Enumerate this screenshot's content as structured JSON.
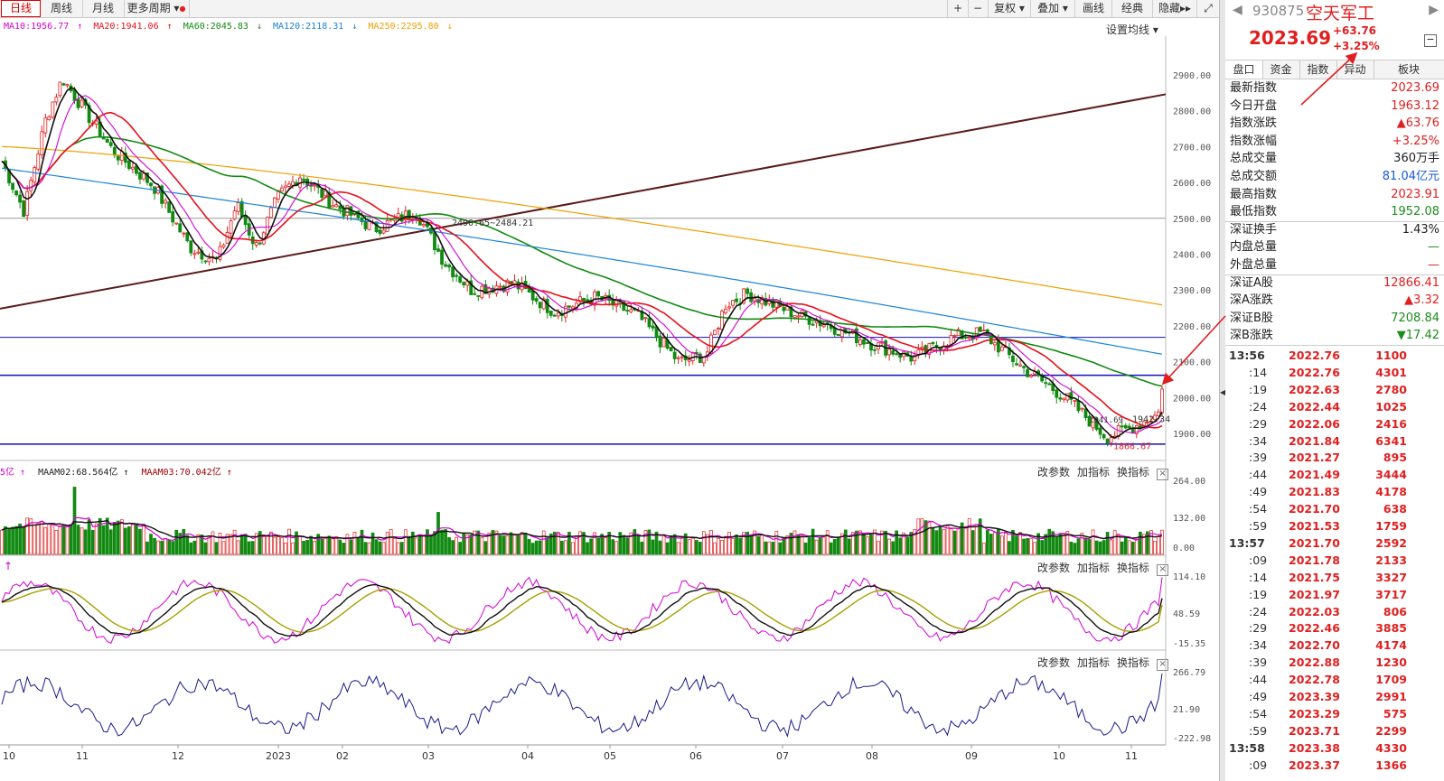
{
  "toolbar": {
    "left_tabs": [
      "日线",
      "周线",
      "月线",
      "更多周期"
    ],
    "active_tab": "日线",
    "right_buttons": [
      "+",
      "−",
      "复权",
      "叠加",
      "画线",
      "经典",
      "隐藏"
    ]
  },
  "ma_legend": [
    {
      "label": "MA10:1956.77",
      "arrow": "↑",
      "color": "#d400d4"
    },
    {
      "label": "MA20:1941.06",
      "arrow": "↑",
      "color": "#e8101c"
    },
    {
      "label": "MA60:2045.83",
      "arrow": "↓",
      "color": "#128a12"
    },
    {
      "label": "MA120:2118.31",
      "arrow": "↓",
      "color": "#1b84d8"
    },
    {
      "label": "MA250:2295.80",
      "arrow": "↓",
      "color": "#f0a000"
    }
  ],
  "set_ma_label": "设置均线 ▾",
  "main_axis": [
    "2900.00",
    "2800.00",
    "2700.00",
    "2600.00",
    "2500.00",
    "2400.00",
    "2300.00",
    "2200.00",
    "2100.00",
    "2000.00",
    "1900.00"
  ],
  "annotations": {
    "high_marker": "2490.65~2484.21",
    "low_marker": "1866.67",
    "last_marker": "1942.34",
    "small_marker": "1941.69"
  },
  "volume_header": {
    "items": [
      {
        "label": "5亿 ↑",
        "color": "#d400d4"
      },
      {
        "label": "MAAM02:68.564亿 ↑",
        "color": "#222"
      },
      {
        "label": "MAAM03:70.042亿 ↑",
        "color": "#a00000"
      }
    ]
  },
  "sub_actions": [
    "改参数",
    "加指标",
    "换指标"
  ],
  "volume_axis": [
    "264.00",
    "132.00",
    "0.00"
  ],
  "kdj_axis": [
    "114.10",
    "48.59",
    "-15.35"
  ],
  "kdj_header": "↑",
  "cci_axis": [
    "266.79",
    "21.90",
    "-222.98"
  ],
  "x_axis": [
    "10",
    "11",
    "12",
    "2023",
    "02",
    "03",
    "04",
    "05",
    "06",
    "07",
    "08",
    "09",
    "10",
    "11"
  ],
  "quote": {
    "code": "930875",
    "name": "空天军工",
    "price": "2023.69",
    "change": "+63.76",
    "change_pct": "+3.25%",
    "tabs": [
      "盘口",
      "资金",
      "指数",
      "异动",
      "板块"
    ]
  },
  "stats": [
    {
      "label": "最新指数",
      "value": "2023.69",
      "color": "red"
    },
    {
      "label": "今日开盘",
      "value": "1963.12",
      "color": "red"
    },
    {
      "label": "指数涨跌",
      "value": "▲63.76",
      "color": "red"
    },
    {
      "label": "指数涨幅",
      "value": "+3.25%",
      "color": "red"
    },
    {
      "label": "总成交量",
      "value": "360万手",
      "color": "black"
    },
    {
      "label": "总成交额",
      "value": "81.04亿元",
      "color": "blue"
    },
    {
      "label": "最高指数",
      "value": "2023.91",
      "color": "red"
    },
    {
      "label": "最低指数",
      "value": "1952.08",
      "color": "green"
    },
    {
      "label": "深证换手",
      "value": "1.43%",
      "color": "black"
    },
    {
      "label": "内盘总量",
      "value": "—",
      "color": "green"
    },
    {
      "label": "外盘总量",
      "value": "—",
      "color": "red"
    },
    {
      "label": "深证A股",
      "value": "12866.41",
      "color": "red"
    },
    {
      "label": "深A涨跌",
      "value": "▲3.32",
      "color": "red"
    },
    {
      "label": "深证B股",
      "value": "7208.84",
      "color": "green"
    },
    {
      "label": "深B涨跌",
      "value": "▼17.42",
      "color": "green"
    }
  ],
  "ticks": [
    {
      "time": "13:56",
      "price": "2022.76",
      "vol": "1100"
    },
    {
      "time": ":14",
      "price": "2022.76",
      "vol": "4301"
    },
    {
      "time": ":19",
      "price": "2022.63",
      "vol": "2780"
    },
    {
      "time": ":24",
      "price": "2022.44",
      "vol": "1025"
    },
    {
      "time": ":29",
      "price": "2022.06",
      "vol": "2416"
    },
    {
      "time": ":34",
      "price": "2021.84",
      "vol": "6341"
    },
    {
      "time": ":39",
      "price": "2021.27",
      "vol": "895"
    },
    {
      "time": ":44",
      "price": "2021.49",
      "vol": "3444"
    },
    {
      "time": ":49",
      "price": "2021.83",
      "vol": "4178"
    },
    {
      "time": ":54",
      "price": "2021.70",
      "vol": "638"
    },
    {
      "time": ":59",
      "price": "2021.53",
      "vol": "1759"
    },
    {
      "time": "13:57",
      "price": "2021.70",
      "vol": "2592"
    },
    {
      "time": ":09",
      "price": "2021.78",
      "vol": "2133"
    },
    {
      "time": ":14",
      "price": "2021.75",
      "vol": "3327"
    },
    {
      "time": ":19",
      "price": "2021.97",
      "vol": "3717"
    },
    {
      "time": ":24",
      "price": "2022.03",
      "vol": "806"
    },
    {
      "time": ":29",
      "price": "2022.46",
      "vol": "3885"
    },
    {
      "time": ":34",
      "price": "2022.70",
      "vol": "4174"
    },
    {
      "time": ":39",
      "price": "2022.88",
      "vol": "1230"
    },
    {
      "time": ":44",
      "price": "2022.78",
      "vol": "1709"
    },
    {
      "time": ":49",
      "price": "2023.39",
      "vol": "2991"
    },
    {
      "time": ":54",
      "price": "2023.29",
      "vol": "575"
    },
    {
      "time": ":59",
      "price": "2023.71",
      "vol": "2299"
    },
    {
      "time": "13:58",
      "price": "2023.38",
      "vol": "4330"
    },
    {
      "time": ":09",
      "price": "2023.37",
      "vol": "1366"
    }
  ],
  "tick_vol_colors": [
    "red",
    "red",
    "red",
    "red",
    "red",
    "red",
    "red",
    "red",
    "red",
    "red",
    "red",
    "red",
    "red",
    "red",
    "red",
    "red",
    "red",
    "red",
    "red",
    "red",
    "red",
    "red",
    "red",
    "red",
    "red"
  ]
}
